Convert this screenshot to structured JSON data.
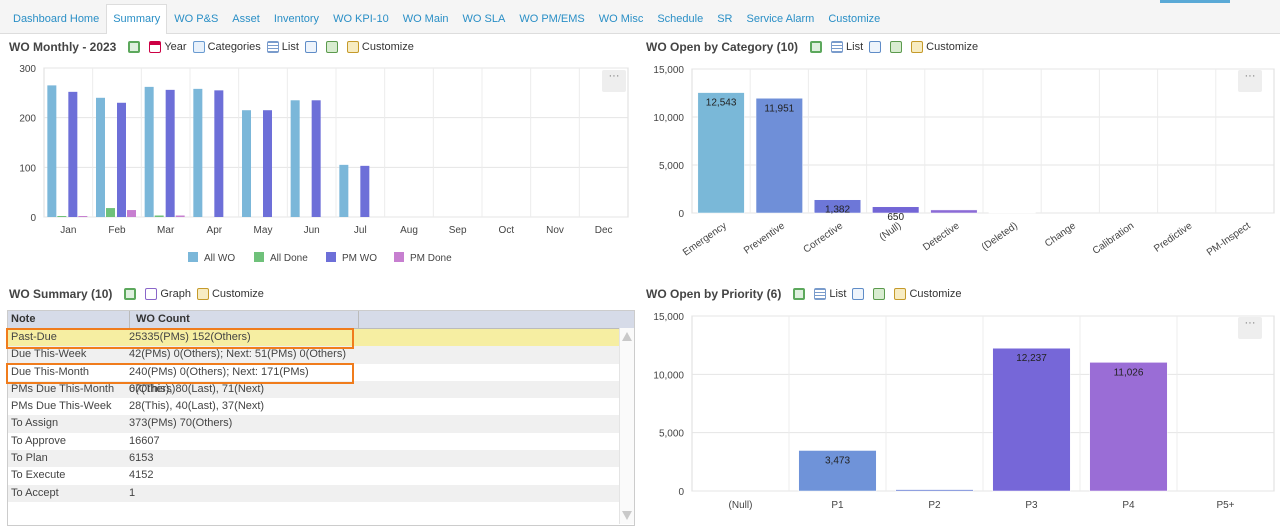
{
  "tabs": [
    "Dashboard Home",
    "Summary",
    "WO P&S",
    "Asset",
    "Inventory",
    "WO KPI-10",
    "WO Main",
    "WO SLA",
    "WO PM/EMS",
    "WO Misc",
    "Schedule",
    "SR",
    "Service Alarm",
    "Customize"
  ],
  "active_tab": 1,
  "panels": {
    "monthly": {
      "title": "WO Monthly - 2023",
      "tools": [
        "Year",
        "Categories",
        "List",
        "Customize"
      ]
    },
    "category": {
      "title": "WO Open by Category (10)",
      "tools": [
        "List",
        "Customize"
      ]
    },
    "summary": {
      "title": "WO Summary (10)",
      "tools": [
        "Graph",
        "Customize"
      ]
    },
    "priority": {
      "title": "WO Open by Priority (6)",
      "tools": [
        "List",
        "Customize"
      ]
    }
  },
  "menu_glyph": "···",
  "colors": {
    "all_wo": "#7bb7d9",
    "all_done": "#6fc17a",
    "pm_wo": "#6d6fd8",
    "pm_done": "#c77fd0",
    "cat1": "#7ab8d8",
    "cat2": "#6f8fd8",
    "cat3": "#6d77d8",
    "cat4": "#7366d6",
    "cat5": "#8b6bd6",
    "p1": "#6f93d9",
    "p2": "#6b80d6",
    "p3": "#7667d8",
    "p4": "#9a6dd6"
  },
  "chart_data": [
    {
      "type": "bar",
      "title": "WO Monthly - 2023",
      "categories": [
        "Jan",
        "Feb",
        "Mar",
        "Apr",
        "May",
        "Jun",
        "Jul",
        "Aug",
        "Sep",
        "Oct",
        "Nov",
        "Dec"
      ],
      "ylim": [
        0,
        300
      ],
      "yticks": [
        0,
        100,
        200,
        300
      ],
      "grid": true,
      "legend_position": "bottom",
      "series": [
        {
          "name": "All WO",
          "values": [
            265,
            240,
            262,
            258,
            215,
            235,
            105,
            0,
            0,
            0,
            0,
            0
          ]
        },
        {
          "name": "All Done",
          "values": [
            2,
            18,
            3,
            0,
            0,
            0,
            0,
            0,
            0,
            0,
            0,
            0
          ]
        },
        {
          "name": "PM WO",
          "values": [
            252,
            230,
            256,
            255,
            215,
            235,
            103,
            0,
            0,
            0,
            0,
            0
          ]
        },
        {
          "name": "PM Done",
          "values": [
            2,
            14,
            3,
            0,
            0,
            0,
            0,
            0,
            0,
            0,
            0,
            0
          ]
        }
      ]
    },
    {
      "type": "bar",
      "title": "WO Open by Category (10)",
      "categories": [
        "Emergency",
        "Preventive",
        "Corrective",
        "(Null)",
        "Detective",
        "(Deleted)",
        "Change",
        "Calibration",
        "Predictive",
        "PM-Inspect"
      ],
      "values": [
        12543,
        11951,
        1382,
        650,
        320,
        40,
        0,
        0,
        0,
        0
      ],
      "data_labels": [
        "12,543",
        "11,951",
        "1,382",
        "650",
        "",
        "",
        "",
        "",
        "",
        ""
      ],
      "ylim": [
        0,
        15000
      ],
      "yticks": [
        "0",
        "5,000",
        "10,000",
        "15,000"
      ],
      "grid": true
    },
    {
      "type": "bar",
      "title": "WO Open by Priority (6)",
      "categories": [
        "(Null)",
        "P1",
        "P2",
        "P3",
        "P4",
        "P5+"
      ],
      "values": [
        0,
        3473,
        120,
        12237,
        11026,
        0
      ],
      "data_labels": [
        "",
        "3,473",
        "",
        "12,237",
        "11,026",
        ""
      ],
      "ylim": [
        0,
        15000
      ],
      "yticks": [
        "0",
        "5,000",
        "10,000",
        "15,000"
      ],
      "grid": true
    },
    {
      "type": "table",
      "title": "WO Summary (10)",
      "columns": [
        "Note",
        "WO Count"
      ],
      "rows": [
        [
          "Past-Due",
          "25335(PMs) 152(Others)"
        ],
        [
          "Due This-Week",
          "42(PMs) 0(Others); Next: 51(PMs) 0(Others)"
        ],
        [
          "Due This-Month",
          "240(PMs) 0(Others); Next: 171(PMs) 0(Others)"
        ],
        [
          "PMs Due This-Month",
          "67(This), 80(Last), 71(Next)"
        ],
        [
          "PMs Due This-Week",
          "28(This), 40(Last), 37(Next)"
        ],
        [
          "To Assign",
          "373(PMs) 70(Others)"
        ],
        [
          "To Approve",
          "16607"
        ],
        [
          "To Plan",
          "6153"
        ],
        [
          "To Execute",
          "4152"
        ],
        [
          "To Accept",
          "1"
        ]
      ]
    }
  ]
}
